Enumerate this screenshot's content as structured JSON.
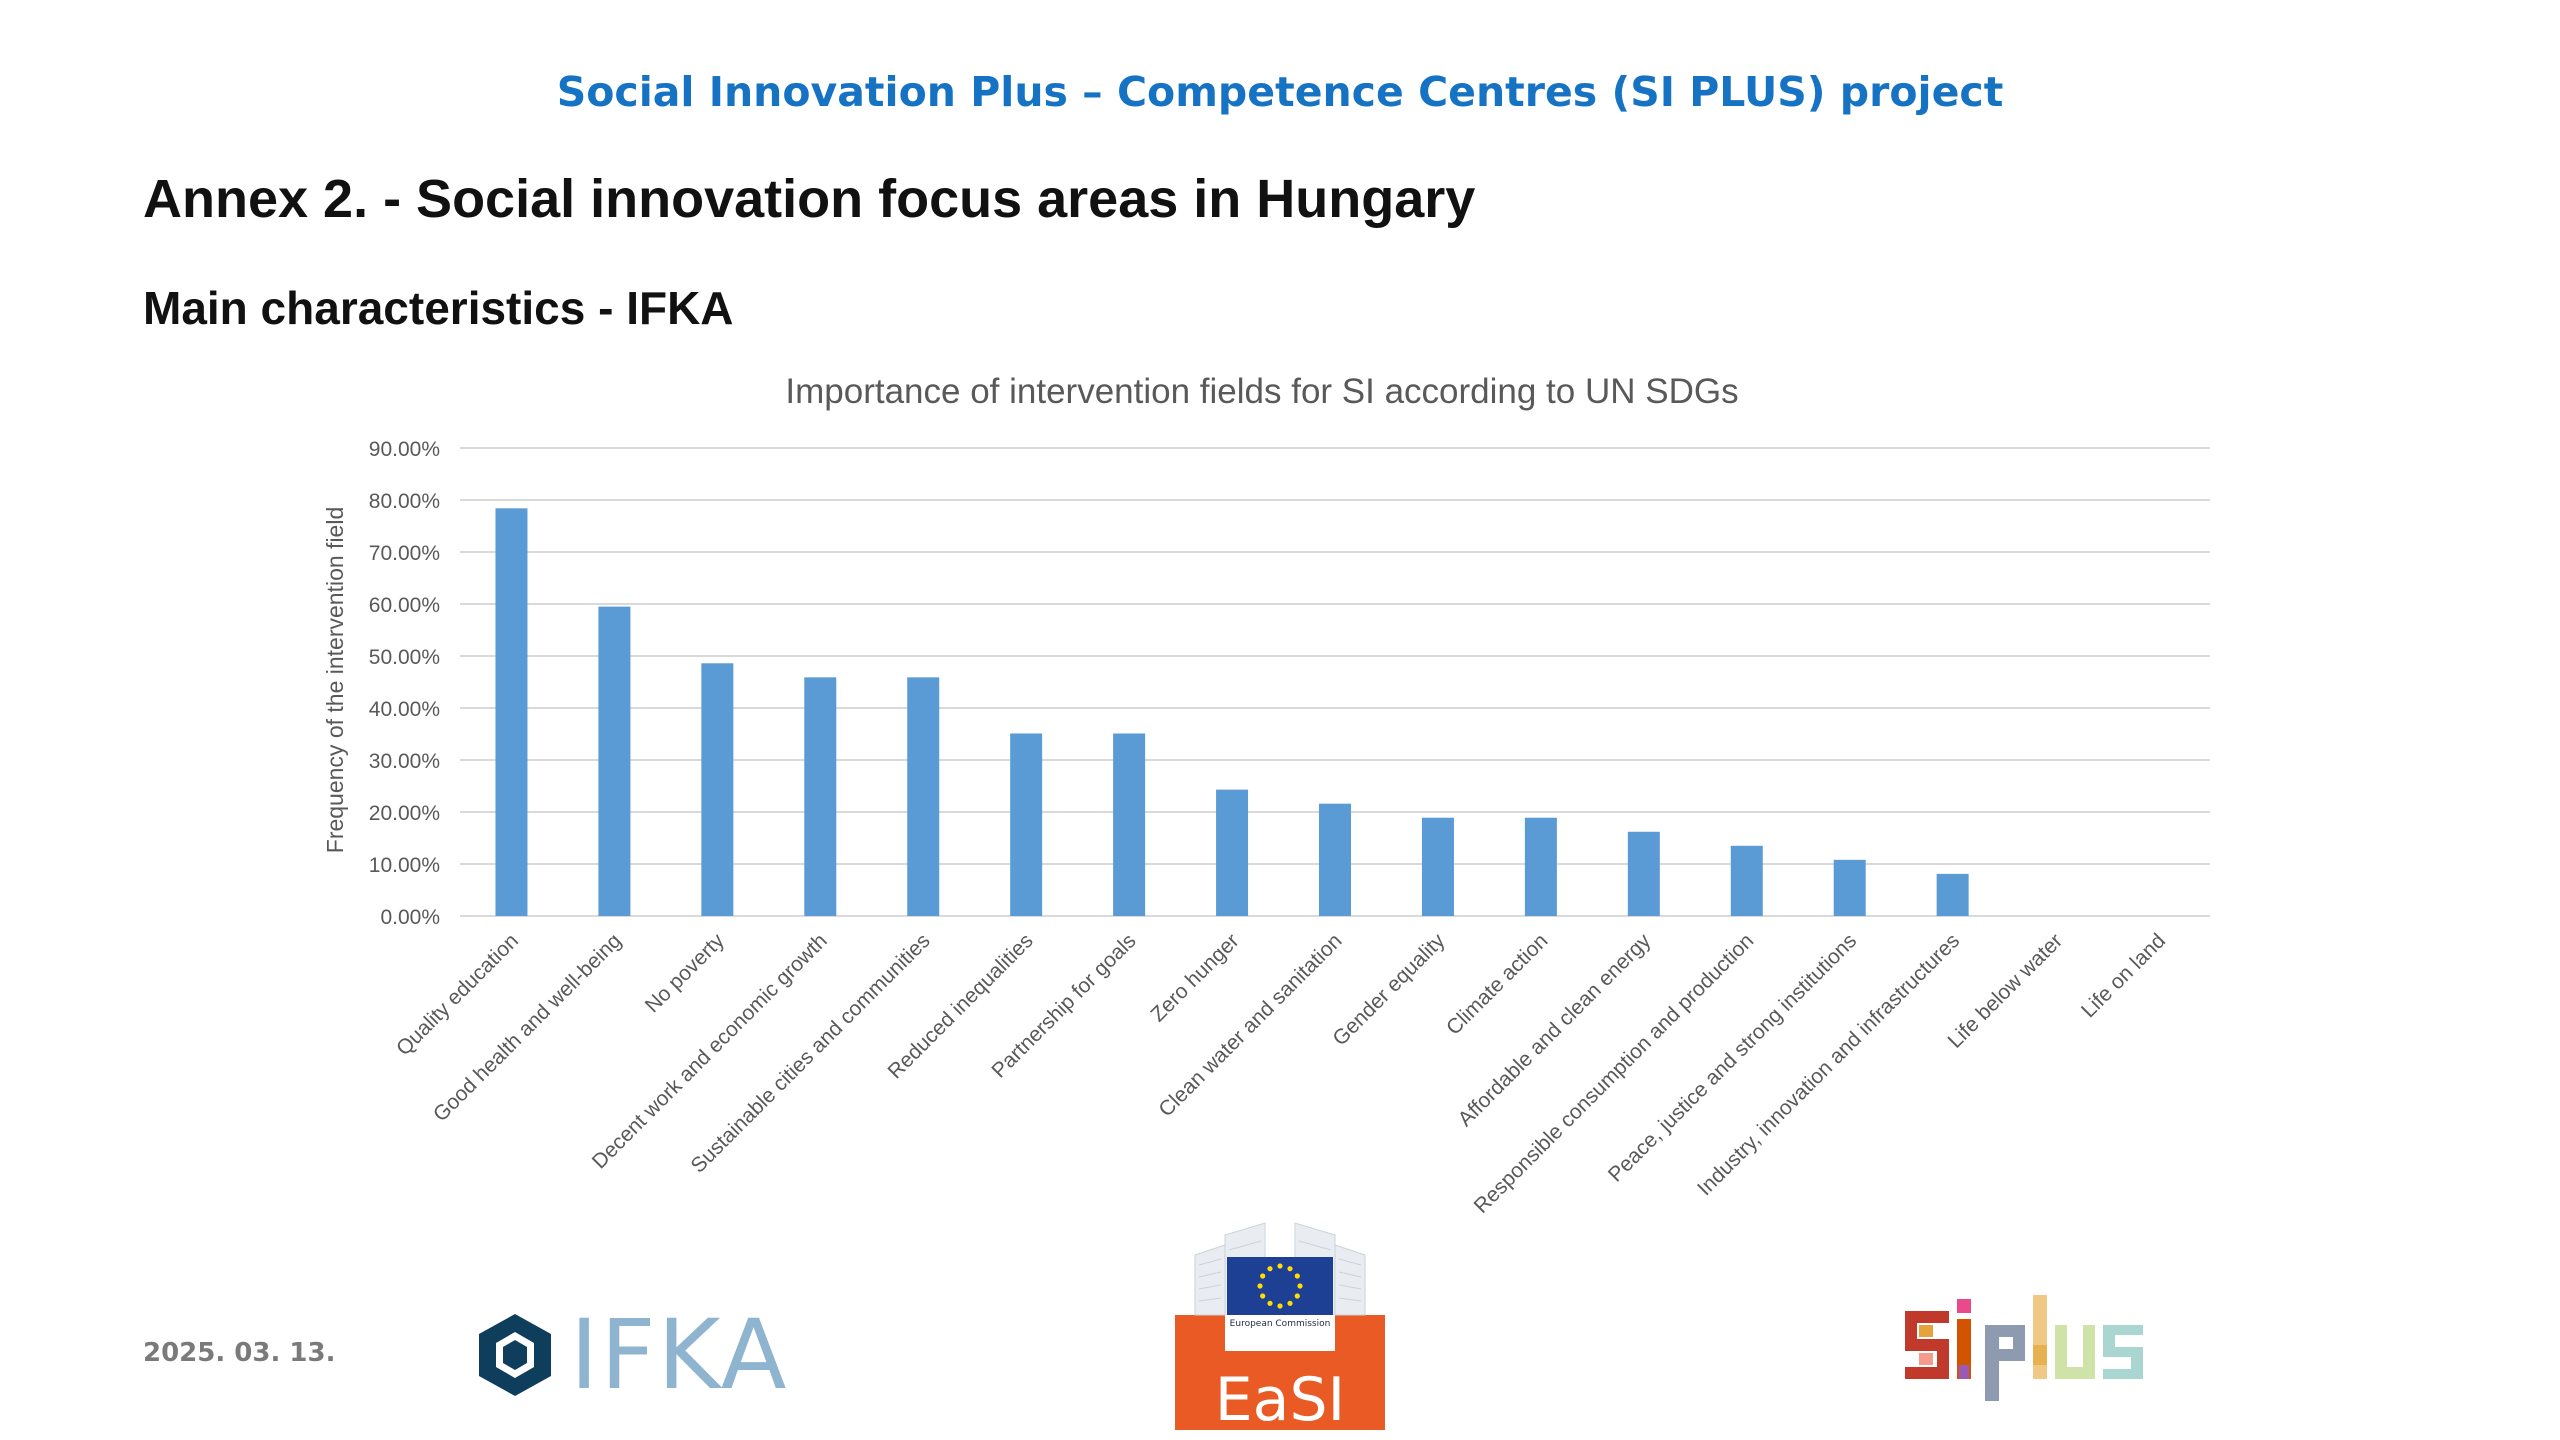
{
  "header": {
    "project_title": "Social Innovation Plus – Competence Centres (SI PLUS) project",
    "annex_title": "Annex 2. - Social innovation focus areas in Hungary",
    "sub_title": "Main characteristics - IFKA"
  },
  "footer": {
    "date": "2025. 03. 13.",
    "ifka_logo_text": "IFKA",
    "easi_logo_text": "EaSI",
    "ec_logo_text": "European Commission",
    "siplus_logo_text": "SI PLUS"
  },
  "colors": {
    "title_blue": "#1673c4",
    "bar": "#5b9bd5",
    "gridline": "#d9d9d9",
    "axis_text": "#595959",
    "easi_orange": "#ea5a24",
    "eu_blue": "#1d3f94",
    "eu_star": "#ffdd00"
  },
  "chart_data": {
    "type": "bar",
    "title": "Importance of intervention fields for SI according to UN SDGs",
    "xlabel": "",
    "ylabel": "Frequency of the intervention field",
    "ylim": [
      0,
      0.9
    ],
    "yticks": [
      "0.00%",
      "10.00%",
      "20.00%",
      "30.00%",
      "40.00%",
      "50.00%",
      "60.00%",
      "70.00%",
      "80.00%",
      "90.00%"
    ],
    "grid": true,
    "legend": "none",
    "categories": [
      "Quality education",
      "Good health and well-being",
      "No poverty",
      "Decent work and economic growth",
      "Sustainable cities and communities",
      "Reduced inequalities",
      "Partnership for goals",
      "Zero hunger",
      "Clean water and sanitation",
      "Gender equality",
      "Climate action",
      "Affordable and clean energy",
      "Responsible consumption and production",
      "Peace, justice and strong institutions",
      "Industry, innovation and infrastructures",
      "Life below water",
      "Life on land"
    ],
    "values": [
      0.784,
      0.595,
      0.486,
      0.459,
      0.459,
      0.351,
      0.351,
      0.243,
      0.216,
      0.189,
      0.189,
      0.162,
      0.135,
      0.108,
      0.081,
      0.0,
      0.0
    ]
  }
}
